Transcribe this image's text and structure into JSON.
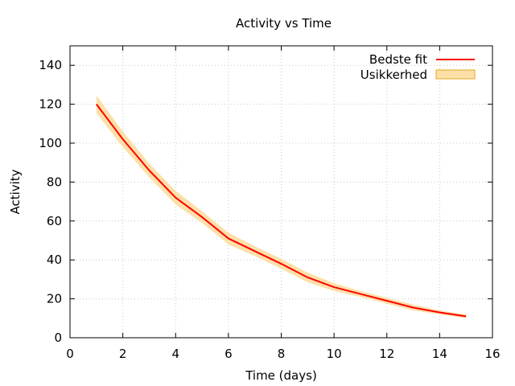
{
  "chart_data": {
    "type": "area",
    "title": "Activity vs Time",
    "xlabel": "Time (days)",
    "ylabel": "Activity",
    "xlim": [
      0,
      16
    ],
    "ylim": [
      0,
      150
    ],
    "xticks": [
      0,
      2,
      4,
      6,
      8,
      10,
      12,
      14,
      16
    ],
    "yticks": [
      0,
      20,
      40,
      60,
      80,
      100,
      120,
      140
    ],
    "grid": true,
    "legend_position": "top-right",
    "series": [
      {
        "name": "Bedste fit",
        "kind": "line",
        "color": "#ff0000",
        "x": [
          1,
          2,
          3,
          4,
          5,
          6,
          7,
          8,
          9,
          10,
          11,
          12,
          13,
          14,
          15
        ],
        "y": [
          120,
          102,
          86,
          72,
          62,
          51,
          44.5,
          38,
          31,
          26,
          22.5,
          19,
          15.5,
          13,
          11
        ]
      },
      {
        "name": "Usikkerhed",
        "kind": "band",
        "color": "#fde0a8",
        "border": "#e6a820",
        "x": [
          1,
          2,
          3,
          4,
          5,
          6,
          7,
          8,
          9,
          10,
          11,
          12,
          13,
          14,
          15
        ],
        "y_low": [
          115.5,
          98,
          82.5,
          68.5,
          59,
          48,
          42,
          35.5,
          28.5,
          24,
          21,
          17.5,
          14,
          12,
          10
        ],
        "y_high": [
          124.5,
          106,
          89.5,
          75.5,
          65,
          54,
          47,
          40.5,
          33.5,
          28,
          24,
          20.5,
          17,
          14,
          12
        ]
      }
    ]
  }
}
